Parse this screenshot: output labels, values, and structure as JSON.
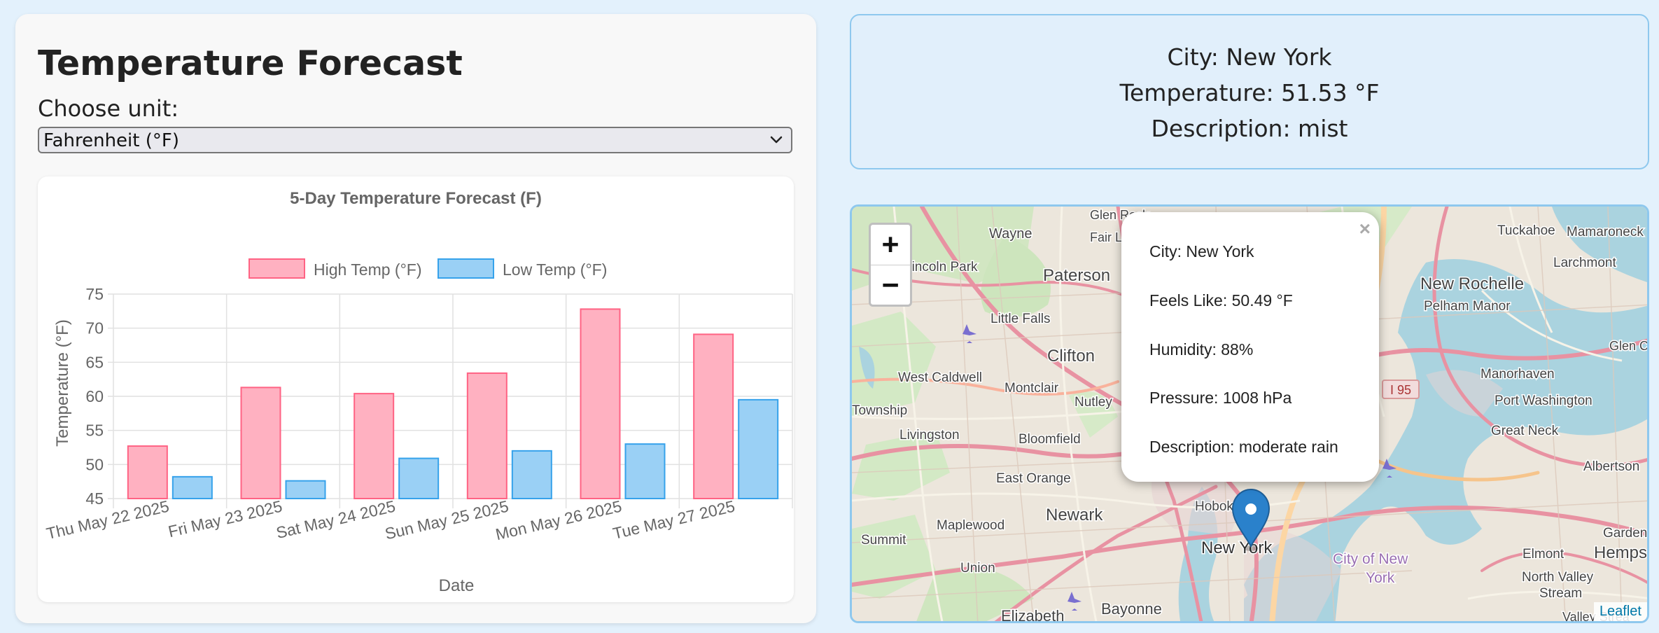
{
  "page": {
    "title": "Temperature Forecast",
    "unit_label": "Choose unit:",
    "unit_selected": "Fahrenheit (°F)"
  },
  "chart_data": {
    "type": "bar",
    "title": "5-Day Temperature Forecast (F)",
    "xlabel": "Date",
    "ylabel": "Temperature (°F)",
    "categories": [
      "Thu May 22 2025",
      "Fri May 23 2025",
      "Sat May 24 2025",
      "Sun May 25 2025",
      "Mon May 26 2025",
      "Tue May 27 2025"
    ],
    "series": [
      {
        "name": "High Temp (°F)",
        "values": [
          52.7,
          61.3,
          60.4,
          63.4,
          72.8,
          69.1
        ],
        "color": "#ffb1c1",
        "border": "#ff6384"
      },
      {
        "name": "Low Temp (°F)",
        "values": [
          48.2,
          47.6,
          50.9,
          52.0,
          53.0,
          59.5
        ],
        "color": "#9ad0f5",
        "border": "#36a2eb"
      }
    ],
    "ylim": [
      45,
      75
    ],
    "yticks": [
      "75",
      "70",
      "65",
      "60",
      "55",
      "50",
      "45"
    ],
    "legend": "top",
    "grid": true
  },
  "weather": {
    "city": "City: New York",
    "temperature": "Temperature: 51.53 °F",
    "description": "Description: mist"
  },
  "map": {
    "zoom_in": "+",
    "zoom_out": "−",
    "close": "×",
    "attribution": "Leaflet",
    "popup": {
      "city": "City: New York",
      "feels_like": "Feels Like: 50.49 °F",
      "humidity": "Humidity: 88%",
      "pressure": "Pressure: 1008 hPa",
      "description": "Description: moderate rain"
    },
    "places": [
      "Wayne",
      "Glen Rock",
      "Fair L",
      "Tuckahoe",
      "Mamaroneck",
      "Lincoln Park",
      "Paterson",
      "Larchmont",
      "New Rochelle",
      "Pelham Manor",
      "Little Falls",
      "Clifton",
      "Glen Co",
      "West Caldwell",
      "Manorhaven",
      "Township",
      "Montclair",
      "Nutley",
      "Port Washington",
      "Livingston",
      "Bloomfield",
      "Great Neck",
      "Albertson",
      "East Orange",
      "Newark",
      "Hobok",
      "Maplewood",
      "Garden C",
      "Summit",
      "New York",
      "City of New",
      "York",
      "Elmont",
      "Hemps",
      "Union",
      "North Valley",
      "Stream",
      "Elizabeth",
      "Bayonne",
      "Valley Strea",
      "I 95"
    ]
  }
}
